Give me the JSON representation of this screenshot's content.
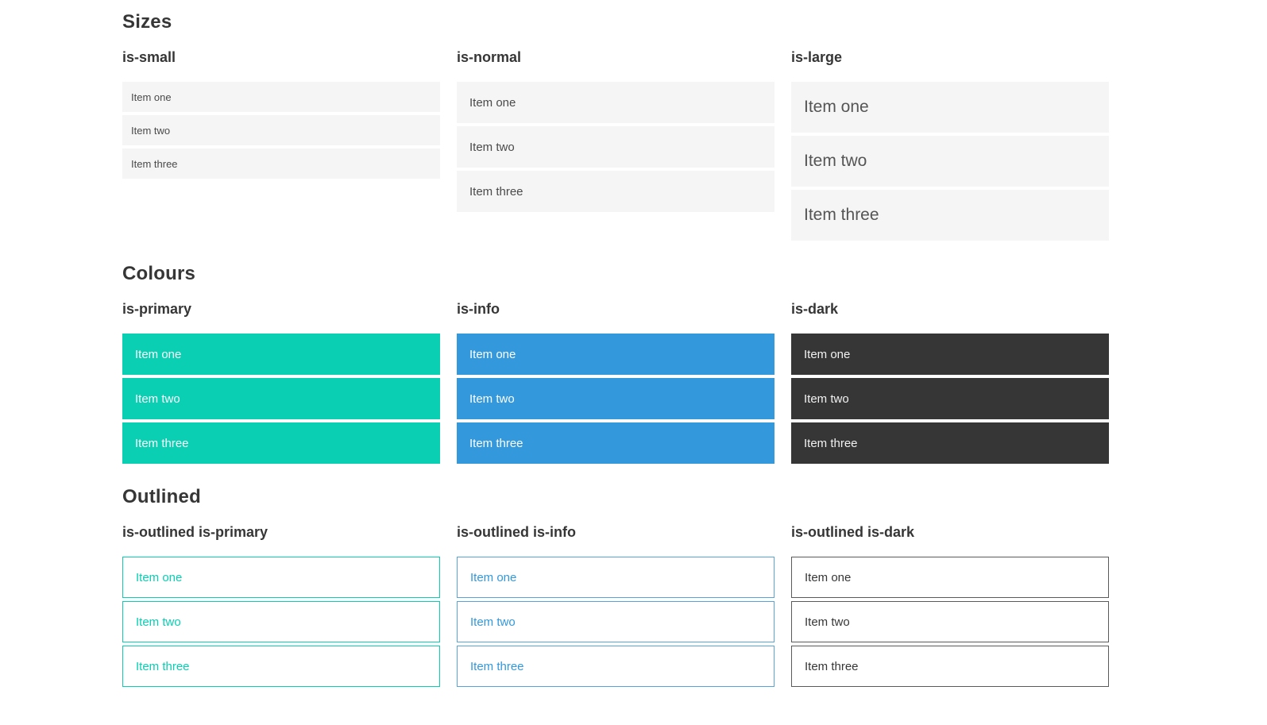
{
  "colors": {
    "primary": "#0acfb2",
    "info": "#3398dc",
    "dark": "#363636",
    "item_background": "#f5f5f5",
    "item_text": "#4a4a4a",
    "heading_text": "#363636",
    "on_color_text": "#ffffff"
  },
  "sections": [
    {
      "title": "Sizes",
      "columns": [
        {
          "label": "is-small",
          "items": [
            "Item one",
            "Item two",
            "Item three"
          ]
        },
        {
          "label": "is-normal",
          "items": [
            "Item one",
            "Item two",
            "Item three"
          ]
        },
        {
          "label": "is-large",
          "items": [
            "Item one",
            "Item two",
            "Item three"
          ]
        }
      ]
    },
    {
      "title": "Colours",
      "columns": [
        {
          "label": "is-primary",
          "items": [
            "Item one",
            "Item two",
            "Item three"
          ]
        },
        {
          "label": "is-info",
          "items": [
            "Item one",
            "Item two",
            "Item three"
          ]
        },
        {
          "label": "is-dark",
          "items": [
            "Item one",
            "Item two",
            "Item three"
          ]
        }
      ]
    },
    {
      "title": "Outlined",
      "columns": [
        {
          "label": "is-outlined is-primary",
          "items": [
            "Item one",
            "Item two",
            "Item three"
          ]
        },
        {
          "label": "is-outlined is-info",
          "items": [
            "Item one",
            "Item two",
            "Item three"
          ]
        },
        {
          "label": "is-outlined is-dark",
          "items": [
            "Item one",
            "Item two",
            "Item three"
          ]
        }
      ]
    }
  ]
}
